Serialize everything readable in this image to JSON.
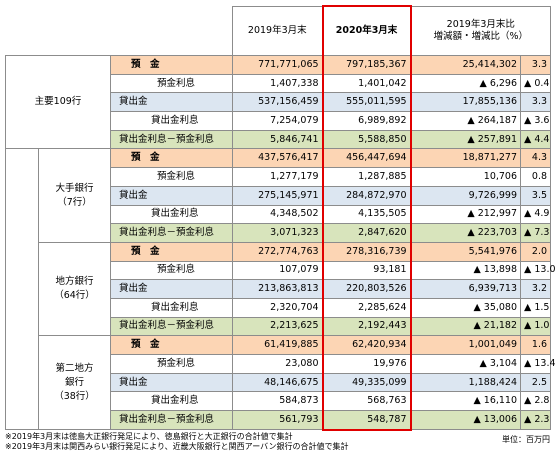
{
  "table": {
    "header": {
      "col2019": "2019年3月末",
      "col2020": "2020年3月末",
      "diff_line1": "2019年3月末比",
      "diff_line2": "増減額・増減比（%）"
    },
    "groups": [
      {
        "label": [
          "主要109行"
        ],
        "rows": [
          {
            "item": "預　金",
            "v2019": "771,771,065",
            "v2020": "797,185,367",
            "diff": "25,414,302",
            "ratio": "3.3"
          },
          {
            "item": "預金利息",
            "v2019": "1,407,338",
            "v2020": "1,401,042",
            "diff": "▲ 6,296",
            "ratio": "▲ 0.4"
          },
          {
            "item": "貸出金",
            "v2019": "537,156,459",
            "v2020": "555,011,595",
            "diff": "17,855,136",
            "ratio": "3.3"
          },
          {
            "item": "貸出金利息",
            "v2019": "7,254,079",
            "v2020": "6,989,892",
            "diff": "▲ 264,187",
            "ratio": "▲ 3.6"
          },
          {
            "item": "貸出金利息－預金利息",
            "v2019": "5,846,741",
            "v2020": "5,588,850",
            "diff": "▲ 257,891",
            "ratio": "▲ 4.4"
          }
        ]
      },
      {
        "label": [
          "大手銀行",
          "（7行）"
        ],
        "rows": [
          {
            "item": "預　金",
            "v2019": "437,576,417",
            "v2020": "456,447,694",
            "diff": "18,871,277",
            "ratio": "4.3"
          },
          {
            "item": "預金利息",
            "v2019": "1,277,179",
            "v2020": "1,287,885",
            "diff": "10,706",
            "ratio": "0.8"
          },
          {
            "item": "貸出金",
            "v2019": "275,145,971",
            "v2020": "284,872,970",
            "diff": "9,726,999",
            "ratio": "3.5"
          },
          {
            "item": "貸出金利息",
            "v2019": "4,348,502",
            "v2020": "4,135,505",
            "diff": "▲ 212,997",
            "ratio": "▲ 4.9"
          },
          {
            "item": "貸出金利息－預金利息",
            "v2019": "3,071,323",
            "v2020": "2,847,620",
            "diff": "▲ 223,703",
            "ratio": "▲ 7.3"
          }
        ]
      },
      {
        "label": [
          "地方銀行",
          "（64行）"
        ],
        "rows": [
          {
            "item": "預　金",
            "v2019": "272,774,763",
            "v2020": "278,316,739",
            "diff": "5,541,976",
            "ratio": "2.0"
          },
          {
            "item": "預金利息",
            "v2019": "107,079",
            "v2020": "93,181",
            "diff": "▲ 13,898",
            "ratio": "▲ 13.0"
          },
          {
            "item": "貸出金",
            "v2019": "213,863,813",
            "v2020": "220,803,526",
            "diff": "6,939,713",
            "ratio": "3.2"
          },
          {
            "item": "貸出金利息",
            "v2019": "2,320,704",
            "v2020": "2,285,624",
            "diff": "▲ 35,080",
            "ratio": "▲ 1.5"
          },
          {
            "item": "貸出金利息－預金利息",
            "v2019": "2,213,625",
            "v2020": "2,192,443",
            "diff": "▲ 21,182",
            "ratio": "▲ 1.0"
          }
        ]
      },
      {
        "label": [
          "第二地方",
          "銀行",
          "（38行）"
        ],
        "rows": [
          {
            "item": "預　金",
            "v2019": "61,419,885",
            "v2020": "62,420,934",
            "diff": "1,001,049",
            "ratio": "1.6"
          },
          {
            "item": "預金利息",
            "v2019": "23,080",
            "v2020": "19,976",
            "diff": "▲ 3,104",
            "ratio": "▲ 13.4"
          },
          {
            "item": "貸出金",
            "v2019": "48,146,675",
            "v2020": "49,335,099",
            "diff": "1,188,424",
            "ratio": "2.5"
          },
          {
            "item": "貸出金利息",
            "v2019": "584,873",
            "v2020": "568,763",
            "diff": "▲ 16,110",
            "ratio": "▲ 2.8"
          },
          {
            "item": "貸出金利息－預金利息",
            "v2019": "561,793",
            "v2020": "548,787",
            "diff": "▲ 13,006",
            "ratio": "▲ 2.3"
          }
        ]
      }
    ]
  },
  "notes": [
    "※2019年3月末は徳島大正銀行発足により、徳島銀行と大正銀行の合計値で集計",
    "※2019年3月末は関西みらい銀行発足により、近畿大阪銀行と関西アーバン銀行の合計値で集計"
  ],
  "unit": "単位：百万円"
}
